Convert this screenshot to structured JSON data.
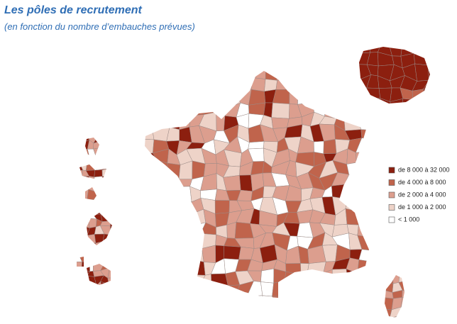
{
  "title": "Les pôles de recrutement",
  "subtitle": "(en fonction du nombre d’embauches prévues)",
  "legend": {
    "items": [
      {
        "label": "de 8 000 à 32 000",
        "color": "#8c1f0f"
      },
      {
        "label": "de 4 000 à 8 000",
        "color": "#c0644c"
      },
      {
        "label": "de 2 000 à 4 000",
        "color": "#dc9e8e"
      },
      {
        "label": "de 1 000 à 2 000",
        "color": "#eed3c8"
      },
      {
        "label": "< 1 000",
        "color": "#ffffff"
      }
    ]
  }
}
